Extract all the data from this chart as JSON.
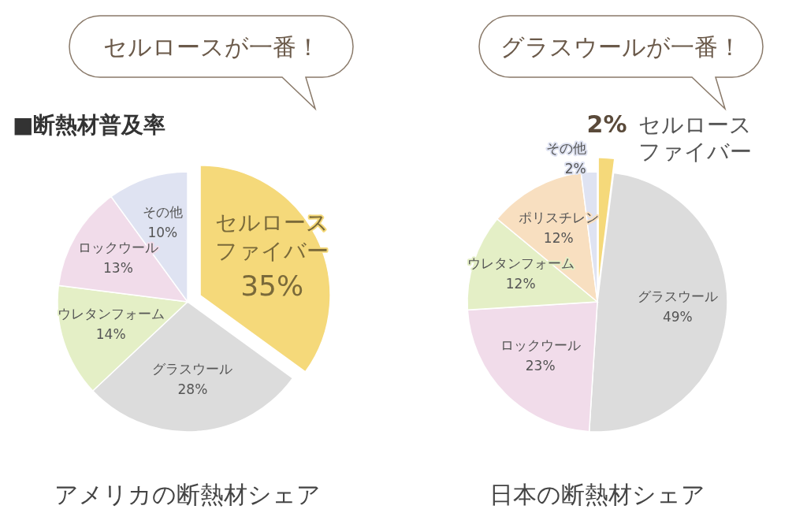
{
  "chart_data": [
    {
      "type": "pie",
      "title": "■断熱材普及率",
      "categories": [
        "セルロースファイバー",
        "グラスウール",
        "ウレタンフォーム",
        "ロックウール",
        "その他"
      ],
      "values": [
        35,
        28,
        14,
        13,
        10
      ],
      "value_labels": [
        "35%",
        "28%",
        "14%",
        "13%",
        "10%"
      ],
      "colors": [
        "#f5d97a",
        "#dcdcdc",
        "#e4efc6",
        "#f1dcea",
        "#dfe3f2"
      ],
      "annotations": [
        "セルロースが一番！",
        "アメリカの断熱材シェア"
      ]
    },
    {
      "type": "pie",
      "categories": [
        "セルロースファイバー",
        "グラスウール",
        "ロックウール",
        "ウレタンフォーム",
        "ポリスチレン",
        "その他"
      ],
      "values": [
        2,
        49,
        23,
        12,
        12,
        2
      ],
      "value_labels": [
        "2%",
        "49%",
        "23%",
        "12%",
        "12%",
        "2%"
      ],
      "colors": [
        "#f5d97a",
        "#dcdcdc",
        "#f1dcea",
        "#e4efc6",
        "#f8dfc0",
        "#dfe3f2"
      ],
      "annotations": [
        "グラスウールが一番！",
        "日本の断熱材シェア"
      ]
    }
  ]
}
